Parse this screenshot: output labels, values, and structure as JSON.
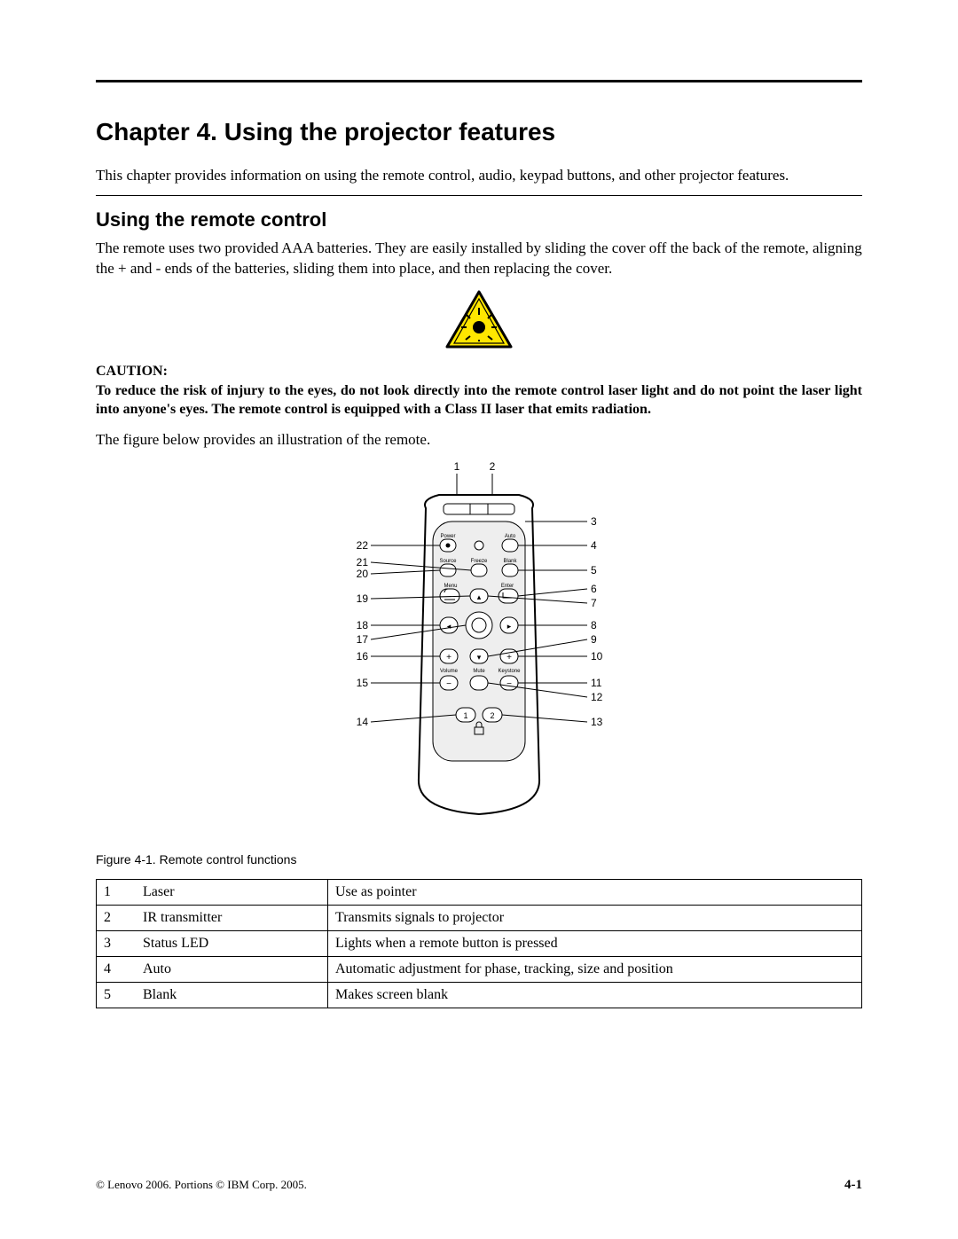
{
  "chapter_title": "Chapter 4. Using the projector features",
  "intro": "This chapter provides information on using the remote control, audio, keypad buttons, and other projector features.",
  "section_title": "Using the remote control",
  "section_body": "The remote uses two provided AAA batteries. They are easily installed by sliding the cover off the back of the remote, aligning the + and - ends of the batteries, sliding them into place, and then replacing the cover.",
  "caution_label": "CAUTION:",
  "caution_text": "To reduce the risk of injury to the eyes, do not look directly into the remote control laser light and do not point the laser light into anyone's eyes. The remote control is equipped with a Class II laser that emits radiation.",
  "figure_intro": "The figure below provides an illustration of the remote.",
  "figure_caption": "Figure 4-1. Remote control functions",
  "warning_icon": {
    "fill": "#ffe600",
    "stroke": "#000000"
  },
  "remote_diagram": {
    "callouts_left": [
      "22",
      "21",
      "20",
      "19",
      "18",
      "17",
      "16",
      "15",
      "14"
    ],
    "callouts_right": [
      "3",
      "4",
      "5",
      "6",
      "7",
      "8",
      "9",
      "10",
      "11",
      "12",
      "13"
    ],
    "callouts_top": [
      "1",
      "2"
    ],
    "button_labels": {
      "power": "Power",
      "auto": "Auto",
      "source": "Source",
      "freeze": "Freeze",
      "blank": "Blank",
      "menu": "Menu",
      "enter": "Enter",
      "volume": "Volume",
      "mute": "Mute",
      "keystone": "Keystone",
      "one": "1",
      "two": "2",
      "plus": "+",
      "minus": "−",
      "left": "◂",
      "right": "▸",
      "up": "▴",
      "down": "▾"
    }
  },
  "table": {
    "rows": [
      {
        "n": "1",
        "name": "Laser",
        "desc": "Use as pointer"
      },
      {
        "n": "2",
        "name": "IR transmitter",
        "desc": "Transmits signals to projector"
      },
      {
        "n": "3",
        "name": "Status LED",
        "desc": "Lights when a remote button is pressed"
      },
      {
        "n": "4",
        "name": "Auto",
        "desc": "Automatic adjustment for phase, tracking, size and position"
      },
      {
        "n": "5",
        "name": "Blank",
        "desc": "Makes screen blank"
      }
    ]
  },
  "footer_left": "© Lenovo 2006. Portions © IBM Corp. 2005.",
  "footer_right": "4-1"
}
